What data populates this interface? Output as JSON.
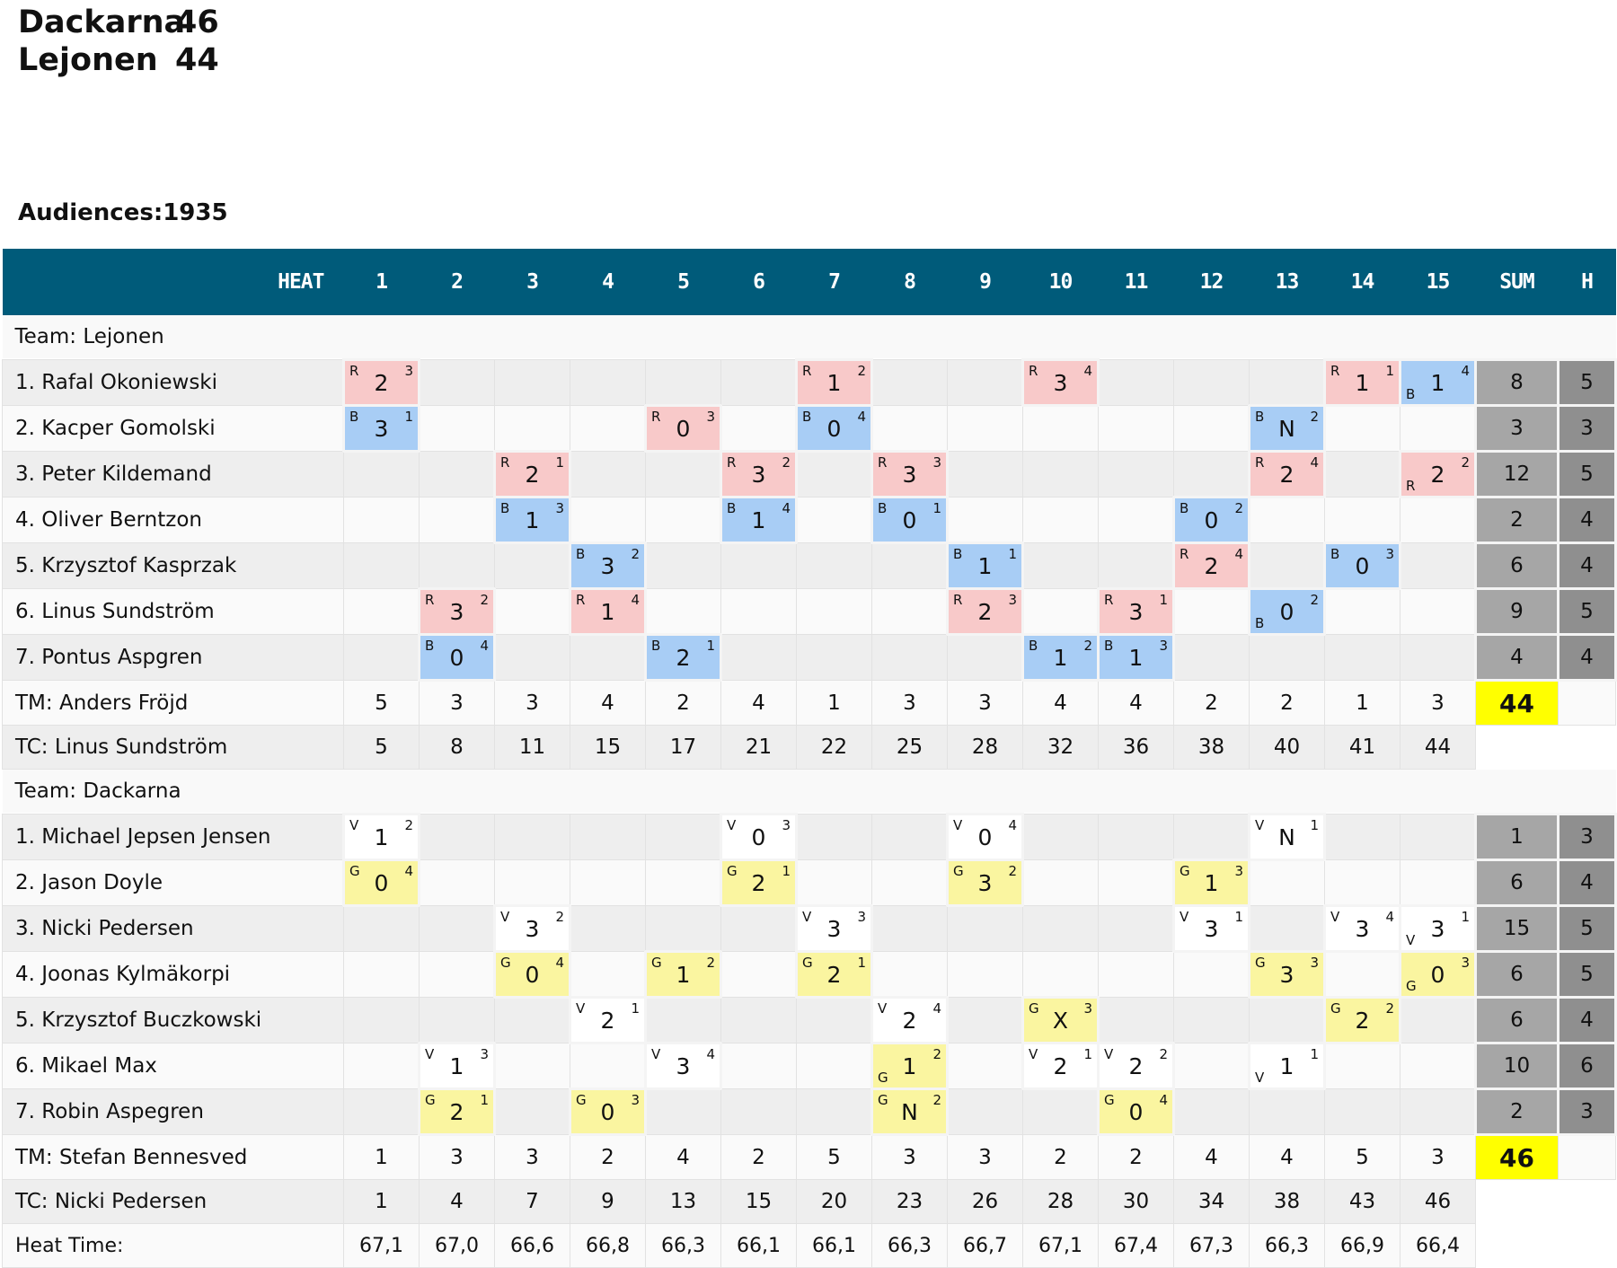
{
  "header": {
    "scores": [
      {
        "team": "Dackarna",
        "score": "46"
      },
      {
        "team": "Lejonen",
        "score": "44"
      }
    ],
    "audiences": "Audiences:1935"
  },
  "table": {
    "heat_label": "HEAT",
    "heats": [
      "1",
      "2",
      "3",
      "4",
      "5",
      "6",
      "7",
      "8",
      "9",
      "10",
      "11",
      "12",
      "13",
      "14",
      "15"
    ],
    "sum_label": "SUM",
    "h_label": "H",
    "teams": [
      {
        "label": "Team: Lejonen",
        "riders": [
          {
            "name": "1. Rafal Okoniewski",
            "sum": "8",
            "h": "5"
          },
          {
            "name": "2. Kacper Gomolski",
            "sum": "3",
            "h": "3"
          },
          {
            "name": "3. Peter Kildemand",
            "sum": "12",
            "h": "5"
          },
          {
            "name": "4. Oliver Berntzon",
            "sum": "2",
            "h": "4"
          },
          {
            "name": "5. Krzysztof Kasprzak",
            "sum": "6",
            "h": "4"
          },
          {
            "name": "6. Linus Sundström",
            "sum": "9",
            "h": "5"
          },
          {
            "name": "7. Pontus Aspgren",
            "sum": "4",
            "h": "4"
          }
        ],
        "tm": {
          "label": "TM: Anders Fröjd",
          "values": [
            "5",
            "3",
            "3",
            "4",
            "2",
            "4",
            "1",
            "3",
            "3",
            "4",
            "4",
            "2",
            "2",
            "1",
            "3"
          ],
          "total": "44"
        },
        "tc": {
          "label": "TC: Linus Sundström",
          "values": [
            "5",
            "8",
            "11",
            "15",
            "17",
            "21",
            "22",
            "25",
            "28",
            "32",
            "36",
            "38",
            "40",
            "41",
            "44"
          ]
        }
      },
      {
        "label": "Team: Dackarna",
        "riders": [
          {
            "name": "1. Michael Jepsen Jensen",
            "sum": "1",
            "h": "3"
          },
          {
            "name": "2. Jason Doyle",
            "sum": "6",
            "h": "4"
          },
          {
            "name": "3. Nicki Pedersen",
            "sum": "15",
            "h": "5"
          },
          {
            "name": "4. Joonas Kylmäkorpi",
            "sum": "6",
            "h": "5"
          },
          {
            "name": "5. Krzysztof Buczkowski",
            "sum": "6",
            "h": "4"
          },
          {
            "name": "6. Mikael Max",
            "sum": "10",
            "h": "6"
          },
          {
            "name": "7. Robin Aspegren",
            "sum": "2",
            "h": "3"
          }
        ],
        "tm": {
          "label": "TM: Stefan Bennesved",
          "values": [
            "1",
            "3",
            "3",
            "2",
            "4",
            "2",
            "5",
            "3",
            "3",
            "2",
            "2",
            "4",
            "4",
            "5",
            "3"
          ],
          "total": "46"
        },
        "tc": {
          "label": "TC: Nicki Pedersen",
          "values": [
            "1",
            "4",
            "7",
            "9",
            "13",
            "15",
            "20",
            "23",
            "26",
            "28",
            "30",
            "34",
            "38",
            "43",
            "46"
          ]
        }
      }
    ],
    "heat_time": {
      "label": "Heat Time:",
      "values": [
        "67,1",
        "67,0",
        "66,6",
        "66,8",
        "66,3",
        "66,1",
        "66,1",
        "66,3",
        "66,7",
        "67,1",
        "67,4",
        "67,3",
        "66,3",
        "66,9",
        "66,4"
      ]
    },
    "results": [
      [
        [
          {
            "h": 1,
            "g": "R",
            "p": "2",
            "pos": "3",
            "c": "red"
          },
          {
            "h": 7,
            "g": "R",
            "p": "1",
            "pos": "2",
            "c": "red"
          },
          {
            "h": 10,
            "g": "R",
            "p": "3",
            "pos": "4",
            "c": "red"
          },
          {
            "h": 14,
            "g": "R",
            "p": "1",
            "pos": "1",
            "c": "red"
          },
          {
            "h": 15,
            "g": "B",
            "p": "1",
            "pos": "4",
            "c": "blue",
            "low": true
          }
        ],
        [
          {
            "h": 1,
            "g": "B",
            "p": "3",
            "pos": "1",
            "c": "blue"
          },
          {
            "h": 5,
            "g": "R",
            "p": "0",
            "pos": "3",
            "c": "red"
          },
          {
            "h": 7,
            "g": "B",
            "p": "0",
            "pos": "4",
            "c": "blue"
          },
          {
            "h": 13,
            "g": "B",
            "p": "N",
            "pos": "2",
            "c": "blue"
          }
        ],
        [
          {
            "h": 3,
            "g": "R",
            "p": "2",
            "pos": "1",
            "c": "red"
          },
          {
            "h": 6,
            "g": "R",
            "p": "3",
            "pos": "2",
            "c": "red"
          },
          {
            "h": 8,
            "g": "R",
            "p": "3",
            "pos": "3",
            "c": "red"
          },
          {
            "h": 13,
            "g": "R",
            "p": "2",
            "pos": "4",
            "c": "red"
          },
          {
            "h": 15,
            "g": "R",
            "p": "2",
            "pos": "2",
            "c": "red",
            "low": true
          }
        ],
        [
          {
            "h": 3,
            "g": "B",
            "p": "1",
            "pos": "3",
            "c": "blue"
          },
          {
            "h": 6,
            "g": "B",
            "p": "1",
            "pos": "4",
            "c": "blue"
          },
          {
            "h": 8,
            "g": "B",
            "p": "0",
            "pos": "1",
            "c": "blue"
          },
          {
            "h": 12,
            "g": "B",
            "p": "0",
            "pos": "2",
            "c": "blue"
          }
        ],
        [
          {
            "h": 4,
            "g": "B",
            "p": "3",
            "pos": "2",
            "c": "blue"
          },
          {
            "h": 9,
            "g": "B",
            "p": "1",
            "pos": "1",
            "c": "blue"
          },
          {
            "h": 12,
            "g": "R",
            "p": "2",
            "pos": "4",
            "c": "red"
          },
          {
            "h": 14,
            "g": "B",
            "p": "0",
            "pos": "3",
            "c": "blue"
          }
        ],
        [
          {
            "h": 2,
            "g": "R",
            "p": "3",
            "pos": "2",
            "c": "red"
          },
          {
            "h": 4,
            "g": "R",
            "p": "1",
            "pos": "4",
            "c": "red"
          },
          {
            "h": 9,
            "g": "R",
            "p": "2",
            "pos": "3",
            "c": "red"
          },
          {
            "h": 11,
            "g": "R",
            "p": "3",
            "pos": "1",
            "c": "red"
          },
          {
            "h": 13,
            "g": "B",
            "p": "0",
            "pos": "2",
            "c": "blue",
            "low": true
          }
        ],
        [
          {
            "h": 2,
            "g": "B",
            "p": "0",
            "pos": "4",
            "c": "blue"
          },
          {
            "h": 5,
            "g": "B",
            "p": "2",
            "pos": "1",
            "c": "blue"
          },
          {
            "h": 10,
            "g": "B",
            "p": "1",
            "pos": "2",
            "c": "blue"
          },
          {
            "h": 11,
            "g": "B",
            "p": "1",
            "pos": "3",
            "c": "blue"
          }
        ]
      ],
      [
        [
          {
            "h": 1,
            "g": "V",
            "p": "1",
            "pos": "2",
            "c": "white"
          },
          {
            "h": 6,
            "g": "V",
            "p": "0",
            "pos": "3",
            "c": "white"
          },
          {
            "h": 9,
            "g": "V",
            "p": "0",
            "pos": "4",
            "c": "white"
          },
          {
            "h": 13,
            "g": "V",
            "p": "N",
            "pos": "1",
            "c": "white"
          }
        ],
        [
          {
            "h": 1,
            "g": "G",
            "p": "0",
            "pos": "4",
            "c": "yellow"
          },
          {
            "h": 6,
            "g": "G",
            "p": "2",
            "pos": "1",
            "c": "yellow"
          },
          {
            "h": 9,
            "g": "G",
            "p": "3",
            "pos": "2",
            "c": "yellow"
          },
          {
            "h": 12,
            "g": "G",
            "p": "1",
            "pos": "3",
            "c": "yellow"
          }
        ],
        [
          {
            "h": 3,
            "g": "V",
            "p": "3",
            "pos": "2",
            "c": "white"
          },
          {
            "h": 7,
            "g": "V",
            "p": "3",
            "pos": "3",
            "c": "white"
          },
          {
            "h": 12,
            "g": "V",
            "p": "3",
            "pos": "1",
            "c": "white"
          },
          {
            "h": 14,
            "g": "V",
            "p": "3",
            "pos": "4",
            "c": "white"
          },
          {
            "h": 15,
            "g": "V",
            "p": "3",
            "pos": "1",
            "c": "white",
            "low": true
          }
        ],
        [
          {
            "h": 3,
            "g": "G",
            "p": "0",
            "pos": "4",
            "c": "yellow"
          },
          {
            "h": 5,
            "g": "G",
            "p": "1",
            "pos": "2",
            "c": "yellow"
          },
          {
            "h": 7,
            "g": "G",
            "p": "2",
            "pos": "1",
            "c": "yellow"
          },
          {
            "h": 13,
            "g": "G",
            "p": "3",
            "pos": "3",
            "c": "yellow"
          },
          {
            "h": 15,
            "g": "G",
            "p": "0",
            "pos": "3",
            "c": "yellow",
            "low": true
          }
        ],
        [
          {
            "h": 4,
            "g": "V",
            "p": "2",
            "pos": "1",
            "c": "white"
          },
          {
            "h": 8,
            "g": "V",
            "p": "2",
            "pos": "4",
            "c": "white"
          },
          {
            "h": 10,
            "g": "G",
            "p": "X",
            "pos": "3",
            "c": "yellow"
          },
          {
            "h": 14,
            "g": "G",
            "p": "2",
            "pos": "2",
            "c": "yellow"
          }
        ],
        [
          {
            "h": 2,
            "g": "V",
            "p": "1",
            "pos": "3",
            "c": "white"
          },
          {
            "h": 5,
            "g": "V",
            "p": "3",
            "pos": "4",
            "c": "white"
          },
          {
            "h": 8,
            "g": "G",
            "p": "1",
            "pos": "2",
            "c": "yellow",
            "low": true
          },
          {
            "h": 10,
            "g": "V",
            "p": "2",
            "pos": "1",
            "c": "white"
          },
          {
            "h": 11,
            "g": "V",
            "p": "2",
            "pos": "2",
            "c": "white"
          },
          {
            "h": 13,
            "g": "V",
            "p": "1",
            "pos": "1",
            "c": "white",
            "low": true
          }
        ],
        [
          {
            "h": 2,
            "g": "G",
            "p": "2",
            "pos": "1",
            "c": "yellow"
          },
          {
            "h": 4,
            "g": "G",
            "p": "0",
            "pos": "3",
            "c": "yellow"
          },
          {
            "h": 8,
            "g": "G",
            "p": "N",
            "pos": "2",
            "c": "yellow"
          },
          {
            "h": 11,
            "g": "G",
            "p": "0",
            "pos": "4",
            "c": "yellow"
          }
        ]
      ]
    ]
  }
}
